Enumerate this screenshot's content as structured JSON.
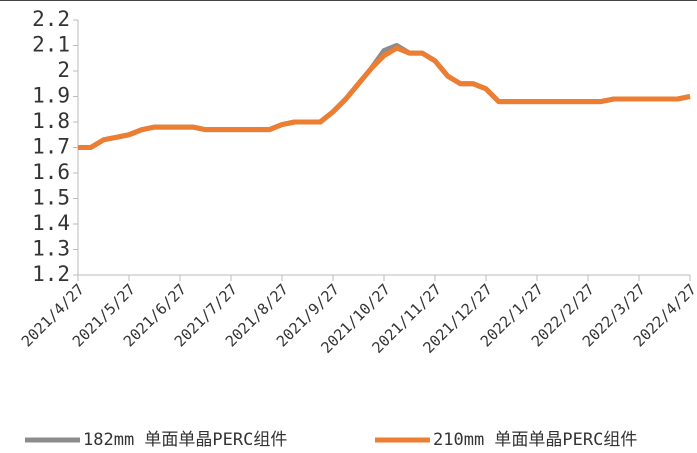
{
  "chart_data": {
    "type": "line",
    "categories": [
      "2021/4/27",
      null,
      null,
      null,
      "2021/5/27",
      null,
      null,
      null,
      "2021/6/27",
      null,
      null,
      null,
      "2021/7/27",
      null,
      null,
      null,
      "2021/8/27",
      null,
      null,
      null,
      "2021/9/27",
      null,
      null,
      null,
      "2021/10/27",
      null,
      null,
      null,
      "2021/11/27",
      null,
      null,
      null,
      "2021/12/27",
      null,
      null,
      null,
      "2022/1/27",
      null,
      null,
      null,
      "2022/2/27",
      null,
      null,
      null,
      "2022/3/27",
      null,
      null,
      null,
      "2022/4/27"
    ],
    "series": [
      {
        "name": "182mm 单面单晶PERC组件",
        "color": "#8c8c8c",
        "values": [
          1.7,
          1.7,
          1.73,
          1.74,
          1.75,
          1.77,
          1.78,
          1.78,
          1.78,
          1.78,
          1.77,
          1.77,
          1.77,
          1.77,
          1.77,
          1.77,
          1.79,
          1.8,
          1.8,
          1.8,
          1.84,
          1.89,
          1.95,
          2.01,
          2.08,
          2.1,
          2.07,
          2.07,
          2.04,
          1.98,
          1.95,
          1.95,
          1.93,
          1.88,
          1.88,
          1.88,
          1.88,
          1.88,
          1.88,
          1.88,
          1.88,
          1.88,
          1.89,
          1.89,
          1.89,
          1.89,
          1.89,
          1.89,
          1.9
        ]
      },
      {
        "name": "210mm 单面单晶PERC组件",
        "color": "#ed7d31",
        "values": [
          1.7,
          1.7,
          1.73,
          1.74,
          1.75,
          1.77,
          1.78,
          1.78,
          1.78,
          1.78,
          1.77,
          1.77,
          1.77,
          1.77,
          1.77,
          1.77,
          1.79,
          1.8,
          1.8,
          1.8,
          1.84,
          1.89,
          1.95,
          2.01,
          2.06,
          2.09,
          2.07,
          2.07,
          2.04,
          1.98,
          1.95,
          1.95,
          1.93,
          1.88,
          1.88,
          1.88,
          1.88,
          1.88,
          1.88,
          1.88,
          1.88,
          1.88,
          1.89,
          1.89,
          1.89,
          1.89,
          1.89,
          1.89,
          1.9
        ]
      }
    ],
    "ylim": [
      1.2,
      2.2
    ],
    "yticks": [
      1.2,
      1.3,
      1.4,
      1.5,
      1.6,
      1.7,
      1.8,
      1.9,
      2,
      2.1,
      2.2
    ],
    "grid": false,
    "legend": "bottom"
  }
}
